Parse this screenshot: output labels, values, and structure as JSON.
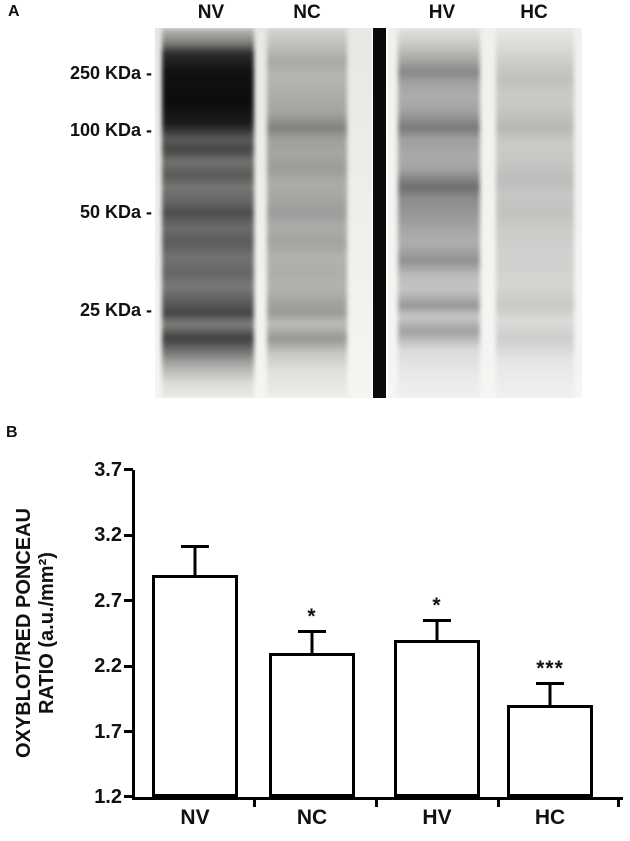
{
  "figure": {
    "panel_a": {
      "label": "A",
      "lane_labels": [
        "NV",
        "NC",
        "HV",
        "HC"
      ],
      "mw_markers": [
        "250 KDa -",
        "100 KDa -",
        "50 KDa -",
        "25 KDa -"
      ]
    },
    "panel_b": {
      "label": "B"
    }
  },
  "chart_data": {
    "type": "bar",
    "categories": [
      "NV",
      "NC",
      "HV",
      "HC"
    ],
    "values": [
      2.9,
      2.3,
      2.4,
      1.9
    ],
    "errors_upper": [
      0.23,
      0.18,
      0.16,
      0.18
    ],
    "significance": [
      "",
      "*",
      "*",
      "***"
    ],
    "title": "",
    "xlabel": "",
    "ylabel_line1": "OXYBLOT/RED PONCEAU",
    "ylabel_line2": "RATIO (a.u./mm²)",
    "yticks": [
      "3.7",
      "3.2",
      "2.7",
      "2.2",
      "1.7",
      "1.2"
    ],
    "ylim": [
      1.2,
      3.7
    ],
    "grid": false,
    "legend": false,
    "bar_fill": "#ffffff",
    "bar_border": "#000000"
  }
}
